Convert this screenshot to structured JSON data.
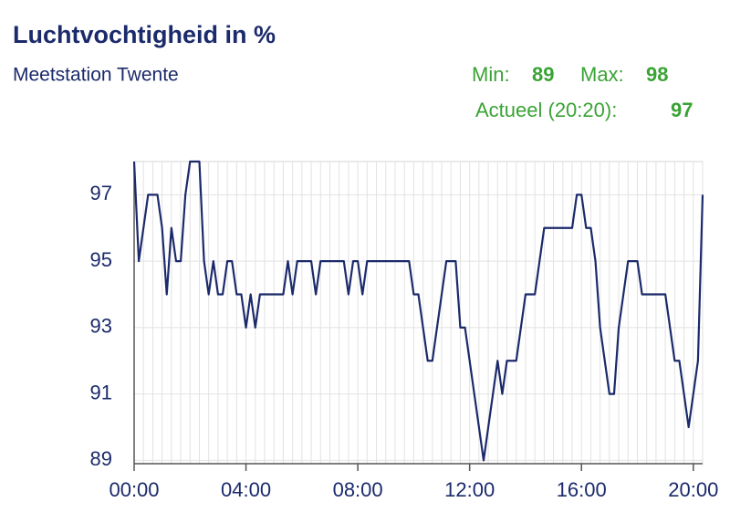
{
  "chart_data": {
    "type": "line",
    "title": "Luchtvochtigheid in %",
    "subtitle": "Meetstation Twente",
    "stats": {
      "min_label": "Min:",
      "min": 89,
      "max_label": "Max:",
      "max": 98,
      "current_label": "Actueel (20:20):",
      "current": 97
    },
    "x": [
      0,
      10,
      20,
      30,
      40,
      50,
      60,
      70,
      80,
      90,
      100,
      110,
      120,
      130,
      140,
      150,
      160,
      170,
      180,
      190,
      200,
      210,
      220,
      230,
      240,
      250,
      260,
      270,
      280,
      290,
      300,
      310,
      320,
      330,
      340,
      350,
      360,
      370,
      380,
      390,
      400,
      410,
      420,
      430,
      440,
      450,
      460,
      470,
      480,
      490,
      500,
      510,
      520,
      530,
      540,
      550,
      560,
      570,
      580,
      590,
      600,
      610,
      620,
      630,
      640,
      650,
      660,
      670,
      680,
      690,
      700,
      710,
      720,
      730,
      740,
      750,
      760,
      770,
      780,
      790,
      800,
      810,
      820,
      830,
      840,
      850,
      860,
      870,
      880,
      890,
      900,
      910,
      920,
      930,
      940,
      950,
      960,
      970,
      980,
      990,
      1000,
      1010,
      1020,
      1030,
      1040,
      1050,
      1060,
      1070,
      1080,
      1090,
      1100,
      1110,
      1120,
      1130,
      1140,
      1150,
      1160,
      1170,
      1180,
      1190,
      1200,
      1210,
      1220
    ],
    "series": [
      {
        "name": "Luchtvochtigheid",
        "color": "#1b2a6b",
        "values": [
          98,
          95,
          96,
          97,
          97,
          97,
          96,
          94,
          96,
          95,
          95,
          97,
          98,
          98,
          98,
          95,
          94,
          95,
          94,
          94,
          95,
          95,
          94,
          94,
          93,
          94,
          93,
          94,
          94,
          94,
          94,
          94,
          94,
          95,
          94,
          95,
          95,
          95,
          95,
          94,
          95,
          95,
          95,
          95,
          95,
          95,
          94,
          95,
          95,
          94,
          95,
          95,
          95,
          95,
          95,
          95,
          95,
          95,
          95,
          95,
          94,
          94,
          93,
          92,
          92,
          93,
          94,
          95,
          95,
          95,
          93,
          93,
          92,
          91,
          90,
          89,
          90,
          91,
          92,
          91,
          92,
          92,
          92,
          93,
          94,
          94,
          94,
          95,
          96,
          96,
          96,
          96,
          96,
          96,
          96,
          97,
          97,
          96,
          96,
          95,
          93,
          92,
          91,
          91,
          93,
          94,
          95,
          95,
          95,
          94,
          94,
          94,
          94,
          94,
          94,
          93,
          92,
          92,
          91,
          90,
          91,
          92,
          97
        ]
      }
    ],
    "xlim": [
      0,
      1220
    ],
    "xticks": [
      {
        "value": 0,
        "label": "00:00"
      },
      {
        "value": 240,
        "label": "04:00"
      },
      {
        "value": 480,
        "label": "08:00"
      },
      {
        "value": 720,
        "label": "12:00"
      },
      {
        "value": 960,
        "label": "16:00"
      },
      {
        "value": 1200,
        "label": "20:00"
      }
    ],
    "ylim": [
      88.9,
      98
    ],
    "yticks": [
      89,
      91,
      93,
      95,
      97
    ],
    "grid": true
  }
}
